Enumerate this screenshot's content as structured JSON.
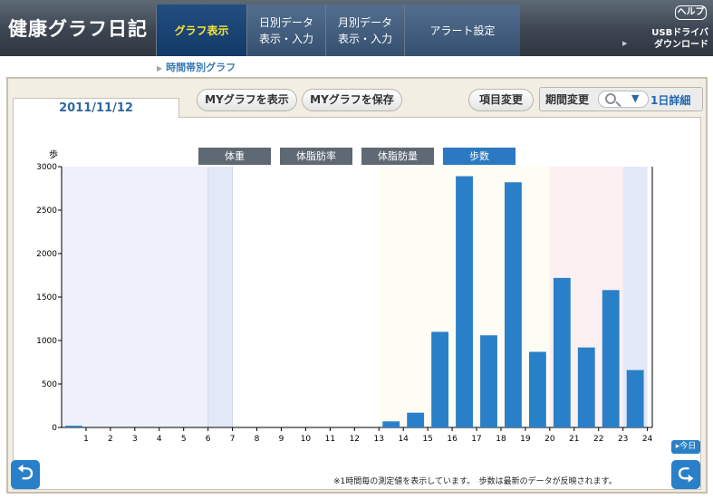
{
  "app": {
    "title": "健康グラフ日記"
  },
  "nav": {
    "tabs": [
      {
        "label_lines": [
          "グラフ表示"
        ]
      },
      {
        "label_lines": [
          "日別データ",
          "表示・入力"
        ]
      },
      {
        "label_lines": [
          "月別データ",
          "表示・入力"
        ]
      },
      {
        "label_lines": [
          "アラート設定"
        ]
      }
    ],
    "help_label": "ヘルプ",
    "usb_label_line1": "USBドライバ",
    "usb_label_line2": "ダウンロード"
  },
  "breadcrumb": {
    "label": "時間帯別グラフ"
  },
  "toolbar": {
    "date": "2011/11/12",
    "show_my_graph": "MYグラフを表示",
    "save_my_graph": "MYグラフを保存",
    "change_items": "項目変更",
    "period_change": "期間変更",
    "detail_label": "1日詳細"
  },
  "series_buttons": [
    "体重",
    "体脂肪率",
    "体脂肪量",
    "歩数"
  ],
  "active_series": "歩数",
  "footer": {
    "note": "※1時間毎の測定値を表示しています。　歩数は最新のデータが反映されます。",
    "today_label": "今日"
  },
  "colors": {
    "bar": "#2a80c8",
    "header_active_text": "#f5e23a",
    "link": "#3b79b3"
  },
  "icons": {
    "back": "return-left-arrow-icon",
    "forward": "return-right-arrow-icon",
    "search": "magnifier-icon",
    "dropdown": "chevron-down-icon"
  },
  "chart_data": {
    "type": "bar",
    "title": "",
    "ylabel": "歩",
    "ylim": [
      0,
      3000
    ],
    "yticks": [
      0,
      500,
      1000,
      1500,
      2000,
      2500,
      3000
    ],
    "xtick_labels": [
      "1",
      "2",
      "3",
      "4",
      "5",
      "6",
      "7",
      "8",
      "9",
      "10",
      "11",
      "12",
      "13",
      "14",
      "15",
      "16",
      "17",
      "18",
      "19",
      "20",
      "21",
      "22",
      "23",
      "24"
    ],
    "bar_positions": [
      0.5,
      13.5,
      14.5,
      15.5,
      16.5,
      17.5,
      18.5,
      19.5,
      20.5,
      21.5,
      22.5,
      23.5
    ],
    "values": [
      20,
      70,
      170,
      1100,
      2890,
      1060,
      2820,
      870,
      1720,
      920,
      1580,
      660
    ],
    "series": [
      {
        "name": "歩数"
      }
    ],
    "grid": false
  }
}
